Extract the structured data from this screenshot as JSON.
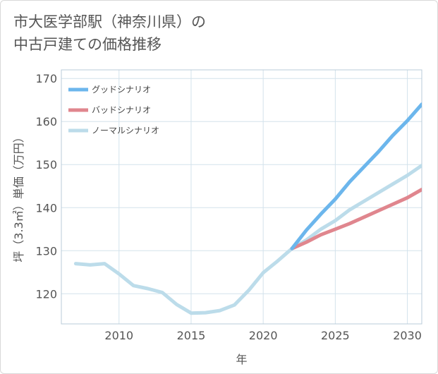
{
  "title_lines": [
    "市大医学部駅（神奈川県）の",
    "中古戸建ての価格推移"
  ],
  "chart_data": {
    "type": "line",
    "title": "市大医学部駅（神奈川県）の中古戸建ての価格推移",
    "xlabel": "年",
    "ylabel": "坪（3.3㎡）単価（万円）",
    "xlim": [
      2006,
      2031
    ],
    "ylim": [
      113,
      172
    ],
    "xticks": [
      2010,
      2015,
      2020,
      2025,
      2030
    ],
    "yticks": [
      120,
      130,
      140,
      150,
      160,
      170
    ],
    "grid": true,
    "legend_position": "top-left",
    "series": [
      {
        "name": "グッドシナリオ",
        "color": "#6cb6ec",
        "x": [
          2022,
          2023,
          2024,
          2025,
          2026,
          2027,
          2028,
          2029,
          2030,
          2031
        ],
        "y": [
          130.5,
          134.8,
          138.5,
          142,
          146,
          149.5,
          153,
          156.8,
          160.2,
          164
        ]
      },
      {
        "name": "バッドシナリオ",
        "color": "#e0868e",
        "x": [
          2022,
          2023,
          2024,
          2025,
          2026,
          2027,
          2028,
          2029,
          2030,
          2031
        ],
        "y": [
          130.5,
          132,
          133.7,
          135,
          136.3,
          137.8,
          139.3,
          140.8,
          142.3,
          144.2
        ]
      },
      {
        "name": "ノーマルシナリオ",
        "color": "#bcdcea",
        "x": [
          2007,
          2008,
          2009,
          2010,
          2011,
          2012,
          2013,
          2014,
          2015,
          2016,
          2017,
          2018,
          2019,
          2020,
          2021,
          2022,
          2023,
          2024,
          2025,
          2026,
          2027,
          2028,
          2029,
          2030,
          2031
        ],
        "y": [
          127,
          126.7,
          127,
          124.6,
          121.9,
          121.2,
          120.3,
          117.5,
          115.5,
          115.6,
          116.1,
          117.4,
          120.8,
          124.9,
          127.6,
          130.5,
          132.5,
          135,
          137,
          139.5,
          141.5,
          143.5,
          145.5,
          147.5,
          149.8
        ]
      }
    ]
  }
}
